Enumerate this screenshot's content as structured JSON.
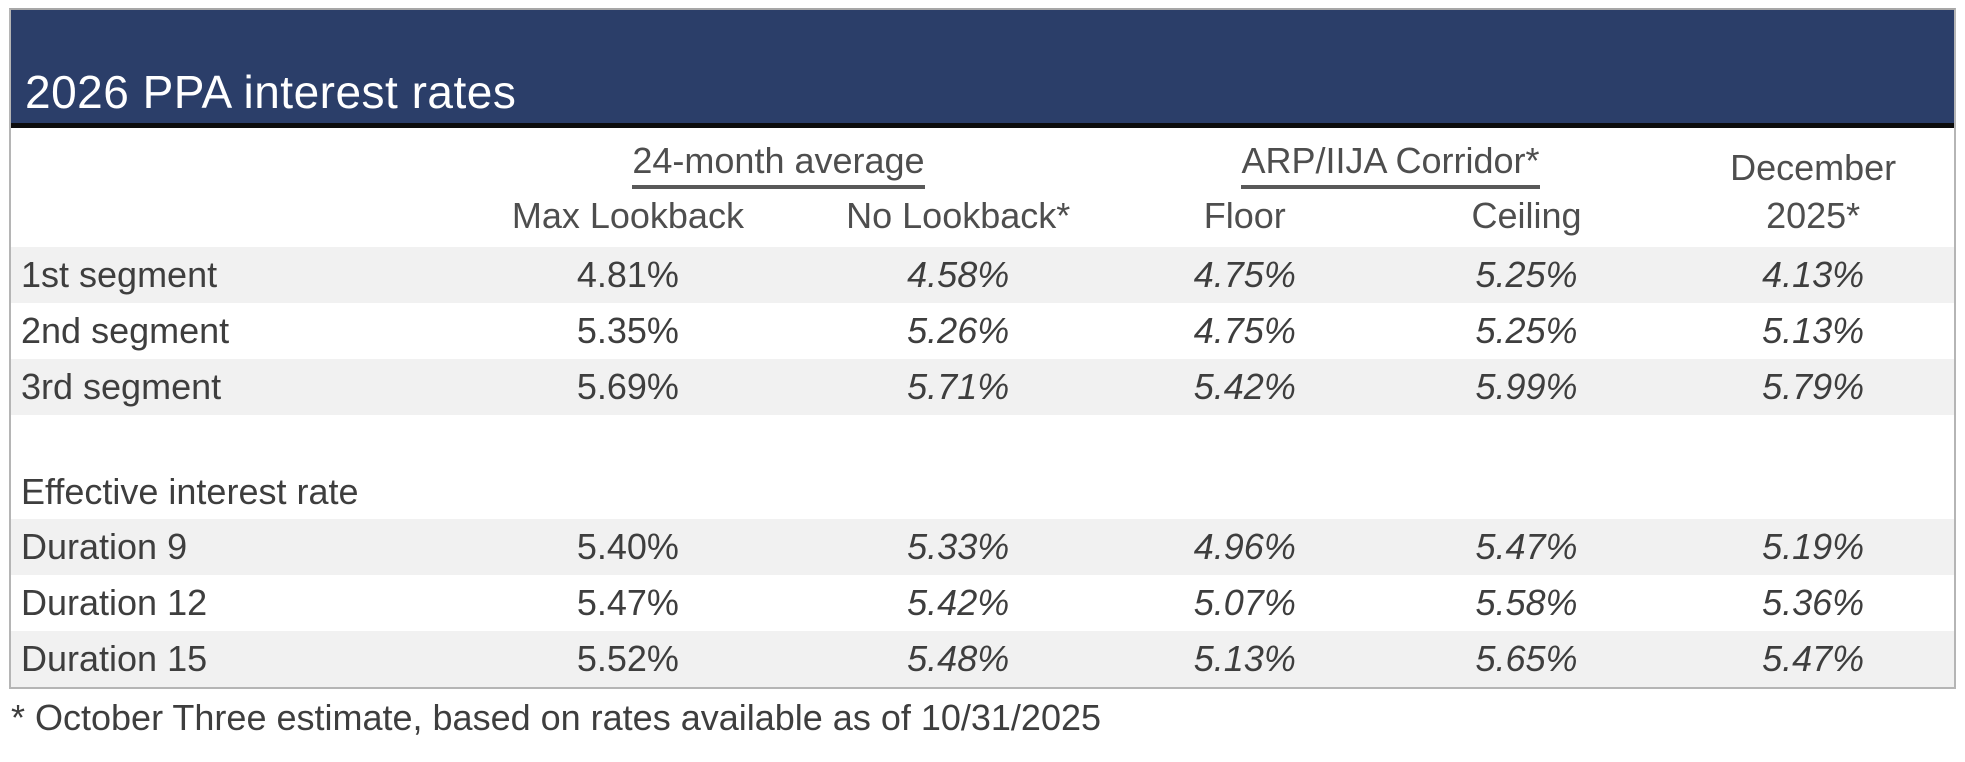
{
  "title": "2026 PPA interest rates",
  "footnote": "* October Three estimate, based on rates available as of 10/31/2025",
  "colors": {
    "title_bar_background": "#2b3e69",
    "title_text": "#ffffff",
    "row_stripe": "#f1f1f1",
    "body_text": "#3e3e3e",
    "header_text": "#4e4e4e",
    "header_rule": "#0c0c0c",
    "outer_border": "#b5b5b5",
    "group_underline": "#595959"
  },
  "table": {
    "group_headers": {
      "avg": "24-month average",
      "corridor": "ARP/IIJA Corridor*",
      "december": "December"
    },
    "column_headers": {
      "max_lookback": "Max Lookback",
      "no_lookback": "No Lookback*",
      "floor": "Floor",
      "ceiling": "Ceiling",
      "dec_2025": "2025*"
    },
    "rows": [
      {
        "label": "1st segment",
        "values": [
          "4.81%",
          "4.58%",
          "4.75%",
          "5.25%",
          "4.13%"
        ]
      },
      {
        "label": "2nd segment",
        "values": [
          "5.35%",
          "5.26%",
          "4.75%",
          "5.25%",
          "5.13%"
        ]
      },
      {
        "label": "3rd segment",
        "values": [
          "5.69%",
          "5.71%",
          "5.42%",
          "5.99%",
          "5.79%"
        ]
      },
      {
        "label": "Effective interest rate",
        "values": [
          "",
          "",
          "",
          "",
          ""
        ]
      },
      {
        "label": "Duration 9",
        "values": [
          "5.40%",
          "5.33%",
          "4.96%",
          "5.47%",
          "5.19%"
        ]
      },
      {
        "label": "Duration 12",
        "values": [
          "5.47%",
          "5.42%",
          "5.07%",
          "5.58%",
          "5.36%"
        ]
      },
      {
        "label": "Duration 15",
        "values": [
          "5.52%",
          "5.48%",
          "5.13%",
          "5.65%",
          "5.47%"
        ]
      }
    ]
  },
  "chart_data": {
    "type": "table",
    "title": "2026 PPA interest rates",
    "column_groups": [
      "",
      "24-month average",
      "24-month average",
      "ARP/IIJA Corridor*",
      "ARP/IIJA Corridor*",
      "December"
    ],
    "columns": [
      "",
      "Max Lookback",
      "No Lookback*",
      "Floor",
      "Ceiling",
      "2025*"
    ],
    "rows": [
      [
        "1st segment",
        "4.81%",
        "4.58%",
        "4.75%",
        "5.25%",
        "4.13%"
      ],
      [
        "2nd segment",
        "5.35%",
        "5.26%",
        "4.75%",
        "5.25%",
        "5.13%"
      ],
      [
        "3rd segment",
        "5.69%",
        "5.71%",
        "5.42%",
        "5.99%",
        "5.79%"
      ],
      [
        "Effective interest rate",
        "",
        "",
        "",
        "",
        ""
      ],
      [
        "Duration 9",
        "5.40%",
        "5.33%",
        "4.96%",
        "5.47%",
        "5.19%"
      ],
      [
        "Duration 12",
        "5.47%",
        "5.42%",
        "5.07%",
        "5.58%",
        "5.36%"
      ],
      [
        "Duration 15",
        "5.52%",
        "5.48%",
        "5.13%",
        "5.65%",
        "5.47%"
      ]
    ],
    "footnote": "* October Three estimate, based on rates available as of 10/31/2025"
  }
}
